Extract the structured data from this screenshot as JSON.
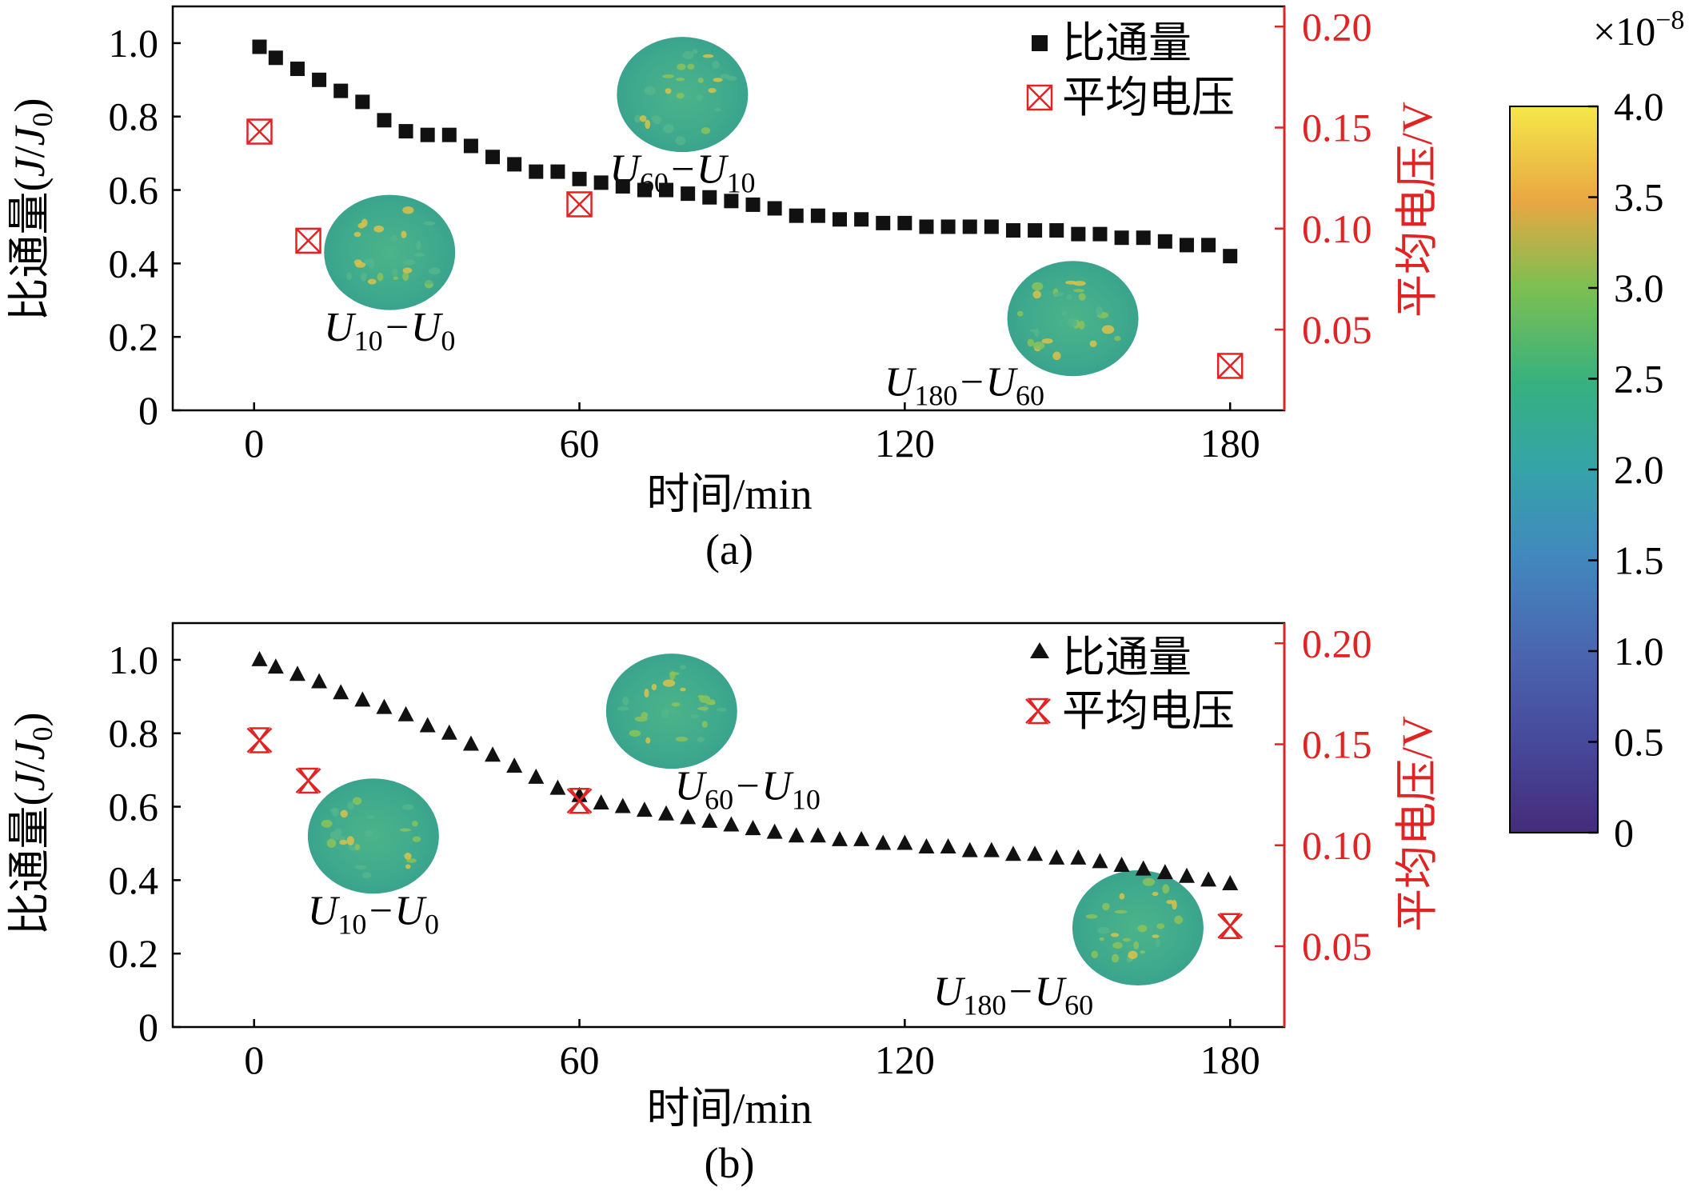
{
  "colors": {
    "flux": "#111111",
    "voltage": "#e02424",
    "axis": "#000000",
    "map_base": "#3aa98a"
  },
  "colorbar": {
    "exponent_label": "×10",
    "exponent": "−8",
    "ticks": [
      "0",
      "0.5",
      "1.0",
      "1.5",
      "2.0",
      "2.5",
      "3.0",
      "3.5",
      "4.0"
    ],
    "range": [
      0,
      4.0
    ]
  },
  "chart_data": [
    {
      "panel_label": "(a)",
      "type": "scatter",
      "xlabel": "时间/min",
      "ylabel": "比通量(J/J0)",
      "ylabel_parts": {
        "main": "比通量(",
        "j": "J",
        "slash": "/",
        "j0": "J",
        "j0_sub": "0",
        "close": ")"
      },
      "y2label": "平均电压/V",
      "xlim": [
        -15,
        190
      ],
      "ylim": [
        0,
        1.1
      ],
      "y2lim": [
        0.01,
        0.21
      ],
      "xticks": [
        0,
        60,
        120,
        180
      ],
      "xtick_labels": [
        "0",
        "60",
        "120",
        "180"
      ],
      "yticks": [
        0,
        0.2,
        0.4,
        0.6,
        0.8,
        1.0
      ],
      "ytick_labels": [
        "0",
        "0.2",
        "0.4",
        "0.6",
        "0.8",
        "1.0"
      ],
      "y2ticks": [
        0.05,
        0.1,
        0.15,
        0.2
      ],
      "y2tick_labels": [
        "0.05",
        "0.10",
        "0.15",
        "0.20"
      ],
      "legend": {
        "position": "top-right",
        "flux_label": "比通量",
        "voltage_label": "平均电压"
      },
      "flux_marker": "square",
      "voltage_marker": "boxed-x",
      "flux": {
        "x": [
          1,
          4,
          8,
          12,
          16,
          20,
          24,
          28,
          32,
          36,
          40,
          44,
          48,
          52,
          56,
          60,
          64,
          68,
          72,
          76,
          80,
          84,
          88,
          92,
          96,
          100,
          104,
          108,
          112,
          116,
          120,
          124,
          128,
          132,
          136,
          140,
          144,
          148,
          152,
          156,
          160,
          164,
          168,
          172,
          176,
          180
        ],
        "y": [
          0.99,
          0.96,
          0.93,
          0.9,
          0.87,
          0.84,
          0.79,
          0.76,
          0.75,
          0.75,
          0.72,
          0.69,
          0.67,
          0.65,
          0.65,
          0.63,
          0.62,
          0.61,
          0.6,
          0.6,
          0.59,
          0.58,
          0.57,
          0.56,
          0.55,
          0.53,
          0.53,
          0.52,
          0.52,
          0.51,
          0.51,
          0.5,
          0.5,
          0.5,
          0.5,
          0.49,
          0.49,
          0.49,
          0.48,
          0.48,
          0.47,
          0.47,
          0.46,
          0.45,
          0.45,
          0.42
        ]
      },
      "voltage": {
        "x": [
          1,
          10,
          60,
          180
        ],
        "y": [
          0.148,
          0.094,
          0.112,
          0.032
        ]
      },
      "insets": [
        {
          "label_main": "U",
          "sub1": "10",
          "sep": "−U",
          "sub2": "0",
          "x": 25,
          "y": 0.43,
          "label_x": 25,
          "label_y": 0.19
        },
        {
          "label_main": "U",
          "sub1": "60",
          "sep": "−U",
          "sub2": "10",
          "x": 79,
          "y": 0.86,
          "label_x": 79,
          "label_y": 0.62
        },
        {
          "label_main": "U",
          "sub1": "180",
          "sep": "−U",
          "sub2": "60",
          "x": 151,
          "y": 0.25,
          "label_x": 131,
          "label_y": 0.04
        }
      ]
    },
    {
      "panel_label": "(b)",
      "type": "scatter",
      "xlabel": "时间/min",
      "ylabel": "比通量(J/J0)",
      "ylabel_parts": {
        "main": "比通量(",
        "j": "J",
        "slash": "/",
        "j0": "J",
        "j0_sub": "0",
        "close": ")"
      },
      "y2label": "平均电压/V",
      "xlim": [
        -15,
        190
      ],
      "ylim": [
        0,
        1.1
      ],
      "y2lim": [
        0.01,
        0.21
      ],
      "xticks": [
        0,
        60,
        120,
        180
      ],
      "xtick_labels": [
        "0",
        "60",
        "120",
        "180"
      ],
      "yticks": [
        0,
        0.2,
        0.4,
        0.6,
        0.8,
        1.0
      ],
      "ytick_labels": [
        "0",
        "0.2",
        "0.4",
        "0.6",
        "0.8",
        "1.0"
      ],
      "y2ticks": [
        0.05,
        0.1,
        0.15,
        0.2
      ],
      "y2tick_labels": [
        "0.05",
        "0.10",
        "0.15",
        "0.20"
      ],
      "legend": {
        "position": "top-right",
        "flux_label": "比通量",
        "voltage_label": "平均电压"
      },
      "flux_marker": "triangle",
      "voltage_marker": "hourglass-x",
      "flux": {
        "x": [
          1,
          4,
          8,
          12,
          16,
          20,
          24,
          28,
          32,
          36,
          40,
          44,
          48,
          52,
          56,
          60,
          64,
          68,
          72,
          76,
          80,
          84,
          88,
          92,
          96,
          100,
          104,
          108,
          112,
          116,
          120,
          124,
          128,
          132,
          136,
          140,
          144,
          148,
          152,
          156,
          160,
          164,
          168,
          172,
          176,
          180
        ],
        "y": [
          1.0,
          0.98,
          0.96,
          0.94,
          0.91,
          0.89,
          0.87,
          0.85,
          0.82,
          0.8,
          0.77,
          0.74,
          0.71,
          0.68,
          0.65,
          0.63,
          0.61,
          0.6,
          0.59,
          0.58,
          0.57,
          0.56,
          0.55,
          0.54,
          0.53,
          0.52,
          0.52,
          0.51,
          0.51,
          0.5,
          0.5,
          0.49,
          0.49,
          0.48,
          0.48,
          0.47,
          0.47,
          0.46,
          0.46,
          0.45,
          0.44,
          0.43,
          0.42,
          0.41,
          0.4,
          0.39
        ]
      },
      "voltage": {
        "x": [
          1,
          10,
          60,
          180
        ],
        "y": [
          0.152,
          0.132,
          0.122,
          0.06
        ]
      },
      "insets": [
        {
          "label_main": "U",
          "sub1": "10",
          "sep": "−U",
          "sub2": "0",
          "x": 22,
          "y": 0.52,
          "label_x": 22,
          "label_y": 0.28
        },
        {
          "label_main": "U",
          "sub1": "60",
          "sep": "−U",
          "sub2": "10",
          "x": 77,
          "y": 0.86,
          "label_x": 91,
          "label_y": 0.62
        },
        {
          "label_main": "U",
          "sub1": "180",
          "sep": "−U",
          "sub2": "60",
          "x": 163,
          "y": 0.27,
          "label_x": 140,
          "label_y": 0.06
        }
      ]
    }
  ]
}
